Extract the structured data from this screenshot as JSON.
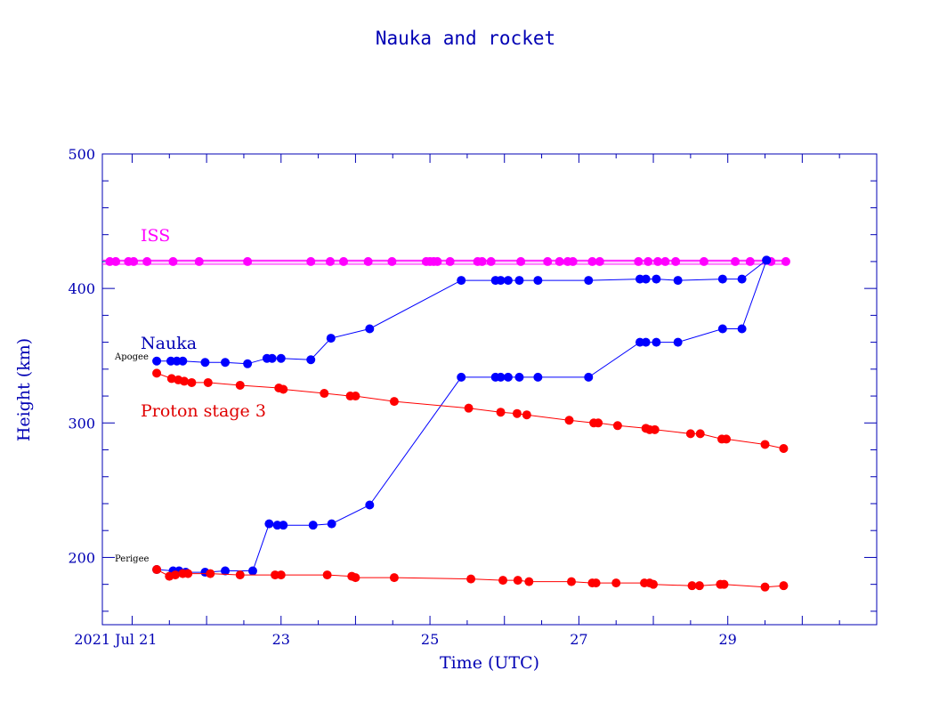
{
  "chart_data": {
    "type": "line",
    "title": "Nauka and rocket",
    "xlabel": "Time (UTC)",
    "ylabel": "Height (km)",
    "xlim": [
      20.6,
      31.0
    ],
    "ylim": [
      150,
      500
    ],
    "x_ticks": [
      {
        "x": 21,
        "label": "2021 Jul 21"
      },
      {
        "x": 23,
        "label": "23"
      },
      {
        "x": 25,
        "label": "25"
      },
      {
        "x": 27,
        "label": "27"
      },
      {
        "x": 29,
        "label": "29"
      }
    ],
    "y_ticks": [
      {
        "y": 200,
        "label": "200"
      },
      {
        "y": 300,
        "label": "300"
      },
      {
        "y": 400,
        "label": "400"
      },
      {
        "y": 500,
        "label": "500"
      }
    ],
    "annotations": {
      "apogee": "Apogee",
      "perigee": "Perigee"
    },
    "series": [
      {
        "name": "ISS",
        "group": "iss",
        "color": "#ff00ff",
        "line_only": true,
        "x": [
          20.6,
          29.8
        ],
        "y": [
          421,
          421
        ]
      },
      {
        "group": "iss",
        "color": "#ff00ff",
        "line_only": true,
        "x": [
          20.6,
          29.8
        ],
        "y": [
          418,
          418
        ]
      },
      {
        "group": "iss",
        "color": "#ff00ff",
        "x": [
          20.7,
          20.78,
          20.95,
          21.02,
          21.2,
          21.55,
          21.9,
          22.55,
          23.4,
          23.66,
          23.84,
          24.17,
          24.49,
          24.95,
          25.0,
          25.05,
          25.1,
          25.27,
          25.64,
          25.7,
          25.82,
          26.22,
          26.58,
          26.74,
          26.85,
          26.92,
          27.18,
          27.28,
          27.8,
          27.93,
          28.06,
          28.16,
          28.3,
          28.68,
          29.1,
          29.3,
          29.58,
          29.78
        ],
        "y": [
          420,
          420,
          420,
          420,
          420,
          420,
          420,
          420,
          420,
          420,
          420,
          420,
          420,
          420,
          420,
          420,
          420,
          420,
          420,
          420,
          420,
          420,
          420,
          420,
          420,
          420,
          420,
          420,
          420,
          420,
          420,
          420,
          420,
          420,
          420,
          420,
          420,
          420
        ]
      },
      {
        "name": "Nauka",
        "group": "nauka",
        "color": "#0000ff",
        "x": [
          21.33,
          21.52,
          21.6,
          21.68,
          21.98,
          22.25,
          22.55,
          22.81,
          22.88,
          23.0,
          23.4,
          23.67,
          24.19,
          25.42,
          25.88,
          25.95,
          26.05,
          26.2,
          26.45,
          27.13,
          27.82,
          27.9,
          28.04,
          28.33,
          28.93,
          29.19,
          29.52
        ],
        "y": [
          346,
          346,
          346,
          346,
          345,
          345,
          344,
          348,
          348,
          348,
          347,
          363,
          370,
          406,
          406,
          406,
          406,
          406,
          406,
          406,
          407,
          407,
          407,
          406,
          407,
          407,
          421
        ]
      },
      {
        "group": "nauka",
        "color": "#0000ff",
        "x": [
          21.33,
          21.55,
          21.63,
          21.72,
          21.98,
          22.25,
          22.62,
          22.84,
          22.95,
          23.03,
          23.43,
          23.68,
          24.19,
          25.42,
          25.88,
          25.95,
          26.05,
          26.2,
          26.45,
          27.13,
          27.82,
          27.9,
          28.04,
          28.33,
          28.93,
          29.19,
          29.52
        ],
        "y": [
          191,
          190,
          190,
          189,
          189,
          190,
          190,
          225,
          224,
          224,
          224,
          225,
          239,
          334,
          334,
          334,
          334,
          334,
          334,
          334,
          360,
          360,
          360,
          360,
          370,
          370,
          421
        ]
      },
      {
        "name": "Proton stage 3",
        "group": "proton",
        "color": "#ff0000",
        "x": [
          21.33,
          21.53,
          21.62,
          21.7,
          21.8,
          22.02,
          22.45,
          22.97,
          23.03,
          23.58,
          23.93,
          24.0,
          24.52,
          25.52,
          25.95,
          26.17,
          26.3,
          26.87,
          27.2,
          27.26,
          27.52,
          27.9,
          27.95,
          28.02,
          28.5,
          28.63,
          28.92,
          28.98,
          29.5,
          29.75
        ],
        "y": [
          337,
          333,
          332,
          331,
          330,
          330,
          328,
          326,
          325,
          322,
          320,
          320,
          316,
          311,
          308,
          307,
          306,
          302,
          300,
          300,
          298,
          296,
          295,
          295,
          292,
          292,
          288,
          288,
          284,
          281
        ]
      },
      {
        "group": "proton",
        "color": "#ff0000",
        "x": [
          21.33,
          21.5,
          21.58,
          21.68,
          21.75,
          22.05,
          22.45,
          22.92,
          23.0,
          23.62,
          23.95,
          24.0,
          24.52,
          25.55,
          25.98,
          26.18,
          26.33,
          26.9,
          27.18,
          27.23,
          27.5,
          27.88,
          27.95,
          28.0,
          28.52,
          28.62,
          28.9,
          28.95,
          29.5,
          29.75
        ],
        "y": [
          191,
          186,
          187,
          188,
          188,
          188,
          187,
          187,
          187,
          187,
          186,
          185,
          185,
          184,
          183,
          183,
          182,
          182,
          181,
          181,
          181,
          181,
          181,
          180,
          179,
          179,
          180,
          180,
          178,
          179
        ]
      }
    ],
    "series_labels": [
      {
        "name": "ISS",
        "color": "#ff00ff"
      },
      {
        "name": "Nauka",
        "color": "#0000ff"
      },
      {
        "name": "Proton stage 3",
        "color": "#ff0000"
      }
    ]
  }
}
